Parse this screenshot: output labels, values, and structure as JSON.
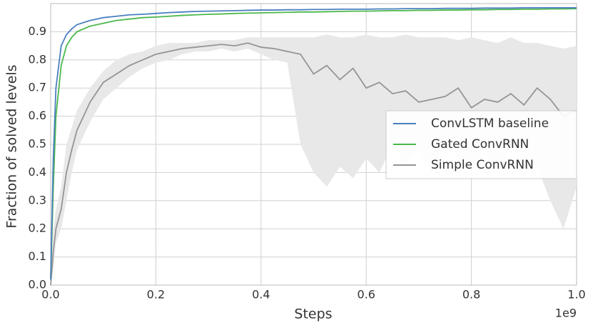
{
  "chart_data": {
    "type": "line",
    "xlabel": "Steps",
    "ylabel": "Fraction of solved levels",
    "x_offset_label": "1e9",
    "x": [
      0,
      5000000,
      10000000,
      20000000,
      30000000,
      40000000,
      50000000,
      75000000,
      100000000,
      125000000,
      150000000,
      175000000,
      200000000,
      225000000,
      250000000,
      275000000,
      300000000,
      325000000,
      350000000,
      375000000,
      400000000,
      425000000,
      450000000,
      475000000,
      500000000,
      525000000,
      550000000,
      575000000,
      600000000,
      625000000,
      650000000,
      675000000,
      700000000,
      725000000,
      750000000,
      775000000,
      800000000,
      825000000,
      850000000,
      875000000,
      900000000,
      925000000,
      950000000,
      975000000,
      1000000000
    ],
    "series": [
      {
        "name": "ConvLSTM baseline",
        "color": "#4a80c0",
        "values": [
          0.02,
          0.45,
          0.7,
          0.85,
          0.89,
          0.91,
          0.925,
          0.94,
          0.95,
          0.955,
          0.96,
          0.962,
          0.965,
          0.968,
          0.97,
          0.972,
          0.973,
          0.974,
          0.975,
          0.976,
          0.977,
          0.977,
          0.978,
          0.978,
          0.979,
          0.979,
          0.98,
          0.98,
          0.98,
          0.981,
          0.981,
          0.982,
          0.982,
          0.982,
          0.983,
          0.983,
          0.983,
          0.984,
          0.984,
          0.984,
          0.985,
          0.985,
          0.985,
          0.985,
          0.985
        ]
      },
      {
        "name": "Gated ConvRNN",
        "color": "#4cb84c",
        "values": [
          0.02,
          0.35,
          0.6,
          0.78,
          0.85,
          0.88,
          0.9,
          0.92,
          0.93,
          0.94,
          0.945,
          0.95,
          0.952,
          0.955,
          0.958,
          0.96,
          0.962,
          0.963,
          0.965,
          0.966,
          0.967,
          0.968,
          0.969,
          0.97,
          0.97,
          0.971,
          0.972,
          0.973,
          0.973,
          0.974,
          0.975,
          0.975,
          0.976,
          0.976,
          0.977,
          0.977,
          0.978,
          0.978,
          0.979,
          0.979,
          0.98,
          0.98,
          0.981,
          0.981,
          0.982
        ]
      },
      {
        "name": "Simple ConvRNN",
        "color": "#959595",
        "band_color": "#e8e8e8",
        "values": [
          0.0,
          0.12,
          0.2,
          0.27,
          0.4,
          0.48,
          0.55,
          0.65,
          0.72,
          0.75,
          0.78,
          0.8,
          0.82,
          0.83,
          0.84,
          0.845,
          0.85,
          0.855,
          0.85,
          0.86,
          0.845,
          0.84,
          0.83,
          0.82,
          0.75,
          0.78,
          0.73,
          0.77,
          0.7,
          0.72,
          0.68,
          0.69,
          0.65,
          0.66,
          0.67,
          0.7,
          0.63,
          0.66,
          0.65,
          0.68,
          0.64,
          0.7,
          0.66,
          0.6,
          0.62
        ],
        "lower": [
          0,
          0.05,
          0.15,
          0.2,
          0.3,
          0.4,
          0.48,
          0.58,
          0.66,
          0.7,
          0.74,
          0.77,
          0.79,
          0.8,
          0.82,
          0.83,
          0.83,
          0.84,
          0.83,
          0.84,
          0.82,
          0.8,
          0.79,
          0.5,
          0.4,
          0.35,
          0.42,
          0.38,
          0.45,
          0.4,
          0.5,
          0.42,
          0.48,
          0.4,
          0.5,
          0.45,
          0.42,
          0.48,
          0.4,
          0.5,
          0.45,
          0.42,
          0.3,
          0.2,
          0.35
        ],
        "upper": [
          0,
          0.2,
          0.27,
          0.35,
          0.5,
          0.56,
          0.62,
          0.7,
          0.76,
          0.8,
          0.82,
          0.83,
          0.85,
          0.86,
          0.86,
          0.86,
          0.87,
          0.87,
          0.87,
          0.88,
          0.88,
          0.88,
          0.88,
          0.88,
          0.88,
          0.89,
          0.88,
          0.88,
          0.89,
          0.88,
          0.88,
          0.89,
          0.88,
          0.88,
          0.88,
          0.87,
          0.88,
          0.87,
          0.86,
          0.88,
          0.86,
          0.86,
          0.85,
          0.84,
          0.85
        ]
      }
    ],
    "xlim": [
      0,
      1000000000
    ],
    "xticks": [
      {
        "value": 0,
        "label": "0.0"
      },
      {
        "value": 200000000,
        "label": "0.2"
      },
      {
        "value": 400000000,
        "label": "0.4"
      },
      {
        "value": 600000000,
        "label": "0.6"
      },
      {
        "value": 800000000,
        "label": "0.8"
      },
      {
        "value": 1000000000,
        "label": "1.0"
      }
    ],
    "ylim": [
      0,
      1.0
    ],
    "yticks": [
      {
        "value": 0,
        "label": "0.0"
      },
      0.1,
      0.2,
      0.3,
      0.4,
      0.5,
      0.6,
      0.7,
      0.8,
      0.9
    ],
    "grid": true,
    "legend": "right"
  }
}
